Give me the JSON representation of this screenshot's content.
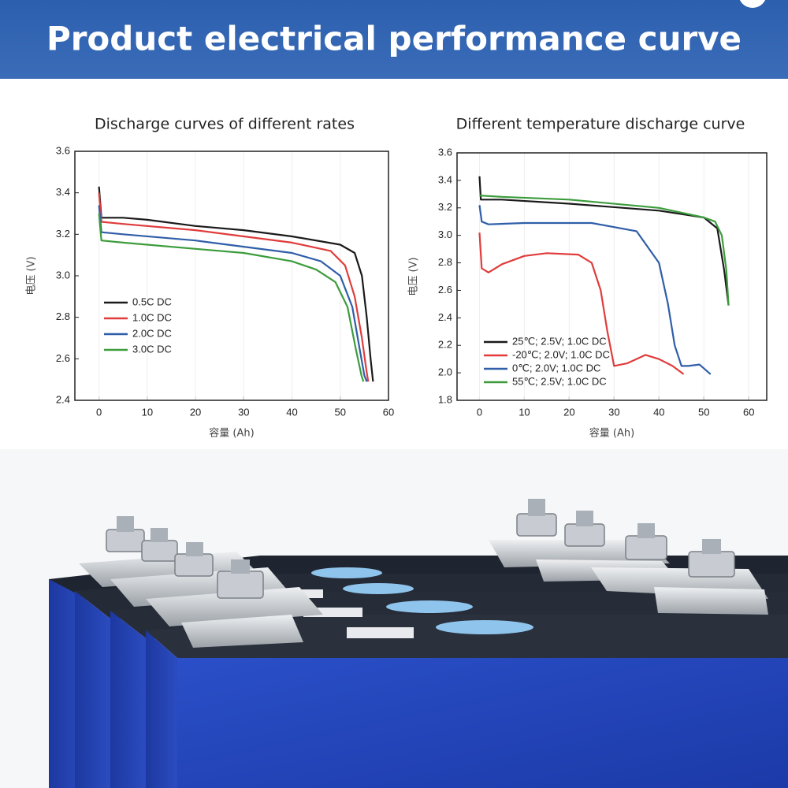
{
  "title": "Product electrical performance curve",
  "chart_data": [
    {
      "type": "line",
      "title": "Discharge curves of different rates",
      "x_label": "容量 (Ah)",
      "y_label": "电压 (V)",
      "xlim": [
        -5,
        60
      ],
      "ylim": [
        2.4,
        3.6
      ],
      "xticks": [
        0,
        10,
        20,
        30,
        40,
        50,
        60
      ],
      "yticks": [
        {
          "value": 2.4,
          "label": "2.4"
        },
        {
          "value": 2.6,
          "label": "2.6"
        },
        {
          "value": 2.8,
          "label": "2.8"
        },
        {
          "value": 3,
          "label": "3.0"
        },
        {
          "value": 3.2,
          "label": "3.2"
        },
        {
          "value": 3.4,
          "label": "3.4"
        },
        {
          "value": 3.6,
          "label": "3.6"
        }
      ],
      "series": [
        {
          "name": "0.5C DC",
          "color": "#1a1a1a",
          "x": [
            0,
            0.5,
            5,
            10,
            20,
            30,
            40,
            50,
            53,
            54.5,
            55.5,
            56.3,
            56.8
          ],
          "values": [
            3.43,
            3.28,
            3.28,
            3.27,
            3.24,
            3.22,
            3.19,
            3.15,
            3.11,
            3.0,
            2.8,
            2.6,
            2.49
          ]
        },
        {
          "name": "1.0C DC",
          "color": "#e03c3c",
          "x": [
            0,
            0.5,
            5,
            20,
            30,
            40,
            48,
            51,
            53,
            54.5,
            55.4,
            55.8
          ],
          "values": [
            3.4,
            3.26,
            3.25,
            3.22,
            3.19,
            3.16,
            3.12,
            3.05,
            2.9,
            2.7,
            2.55,
            2.49
          ]
        },
        {
          "name": "2.0C DC",
          "color": "#2f5ea8",
          "x": [
            0,
            0.5,
            5,
            20,
            30,
            40,
            46,
            50,
            52.5,
            54,
            55,
            55.5
          ],
          "values": [
            3.34,
            3.21,
            3.2,
            3.17,
            3.14,
            3.11,
            3.07,
            3.0,
            2.85,
            2.65,
            2.52,
            2.49
          ]
        },
        {
          "name": "3.0C DC",
          "color": "#3c9c3c",
          "x": [
            0,
            0.5,
            5,
            20,
            30,
            40,
            45,
            49,
            51.5,
            53.2,
            54.4,
            54.8
          ],
          "values": [
            3.3,
            3.17,
            3.16,
            3.13,
            3.11,
            3.07,
            3.03,
            2.97,
            2.85,
            2.65,
            2.52,
            2.49
          ]
        }
      ]
    },
    {
      "type": "line",
      "title": "Different temperature discharge curve",
      "x_label": "容量 (Ah)",
      "y_label": "电压 (V)",
      "xlim": [
        -5,
        64
      ],
      "ylim": [
        1.8,
        3.6
      ],
      "xticks": [
        0,
        10,
        20,
        30,
        40,
        50,
        60
      ],
      "yticks": [
        1.8,
        {
          "value": 2,
          "label": "2.0"
        },
        2.2,
        2.4,
        2.6,
        2.8,
        {
          "value": 3,
          "label": "3.0"
        },
        3.2,
        3.4,
        3.6
      ],
      "series": [
        {
          "name": "25℃; 2.5V; 1.0C DC",
          "color": "#1a1a1a",
          "x": [
            0,
            0.3,
            5,
            20,
            40,
            50,
            53,
            54.5,
            55.5
          ],
          "values": [
            3.43,
            3.26,
            3.26,
            3.23,
            3.18,
            3.13,
            3.05,
            2.75,
            2.49
          ]
        },
        {
          "name": "-20℃; 2.0V; 1.0C DC",
          "color": "#e03c3c",
          "x": [
            0,
            0.5,
            2,
            5,
            10,
            15,
            22,
            25,
            27,
            28.5,
            30,
            33,
            37,
            40,
            43,
            45.5
          ],
          "values": [
            3.02,
            2.76,
            2.73,
            2.79,
            2.85,
            2.87,
            2.86,
            2.8,
            2.6,
            2.3,
            2.05,
            2.07,
            2.13,
            2.1,
            2.05,
            1.99
          ]
        },
        {
          "name": "0℃; 2.0V; 1.0C DC",
          "color": "#2f5ea8",
          "x": [
            0,
            0.5,
            2,
            10,
            25,
            35,
            40,
            42,
            43.5,
            45,
            46.5,
            49,
            51.5
          ],
          "values": [
            3.22,
            3.1,
            3.08,
            3.09,
            3.09,
            3.03,
            2.8,
            2.5,
            2.2,
            2.05,
            2.05,
            2.06,
            1.99
          ]
        },
        {
          "name": "55℃; 2.5V; 1.0C DC",
          "color": "#3c9c3c",
          "x": [
            0,
            5,
            20,
            40,
            50,
            52.5,
            54,
            55,
            55.5
          ],
          "values": [
            3.29,
            3.28,
            3.26,
            3.2,
            3.13,
            3.1,
            3.0,
            2.75,
            2.49
          ]
        }
      ]
    }
  ]
}
